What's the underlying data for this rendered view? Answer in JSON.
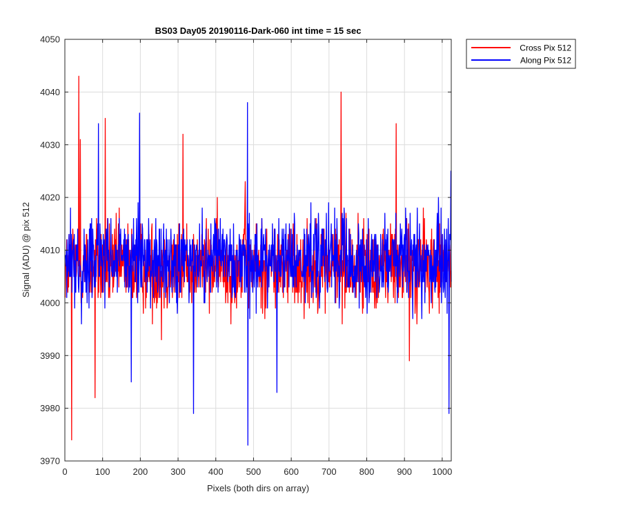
{
  "chart_data": {
    "type": "line",
    "title": "BS03 Day05 20190116-Dark-060 int time = 15 sec",
    "xlabel": "Pixels (both dirs on array)",
    "ylabel": "Signal (ADU) @ pix 512",
    "xlim": [
      0,
      1024
    ],
    "ylim": [
      3970,
      4050
    ],
    "xticks": [
      0,
      100,
      200,
      300,
      400,
      500,
      600,
      700,
      800,
      900,
      1000
    ],
    "yticks": [
      3970,
      3980,
      3990,
      4000,
      4010,
      4020,
      4030,
      4040,
      4050
    ],
    "grid": true,
    "legend_position": "outside-top-right",
    "series": [
      {
        "name": "Cross Pix 512",
        "color": "#ff0000",
        "baseline": 4007,
        "noise_amplitude": 9,
        "points": 1024,
        "peaks": [
          {
            "x": 17,
            "y": 3974
          },
          {
            "x": 36,
            "y": 4043
          },
          {
            "x": 40,
            "y": 4031
          },
          {
            "x": 79,
            "y": 3982
          },
          {
            "x": 106,
            "y": 4035
          },
          {
            "x": 255,
            "y": 3993
          },
          {
            "x": 312,
            "y": 4032
          },
          {
            "x": 477,
            "y": 4023
          },
          {
            "x": 731,
            "y": 4040
          },
          {
            "x": 877,
            "y": 4034
          },
          {
            "x": 912,
            "y": 3989
          }
        ]
      },
      {
        "name": "Along Pix 512",
        "color": "#0000ff",
        "baseline": 4008,
        "noise_amplitude": 9,
        "points": 1024,
        "peaks": [
          {
            "x": 88,
            "y": 4034
          },
          {
            "x": 197,
            "y": 4036
          },
          {
            "x": 175,
            "y": 3985
          },
          {
            "x": 340,
            "y": 3979
          },
          {
            "x": 483,
            "y": 4038
          },
          {
            "x": 484,
            "y": 3973
          },
          {
            "x": 561,
            "y": 3983
          },
          {
            "x": 1017,
            "y": 3979
          },
          {
            "x": 1022,
            "y": 4025
          }
        ]
      }
    ]
  }
}
